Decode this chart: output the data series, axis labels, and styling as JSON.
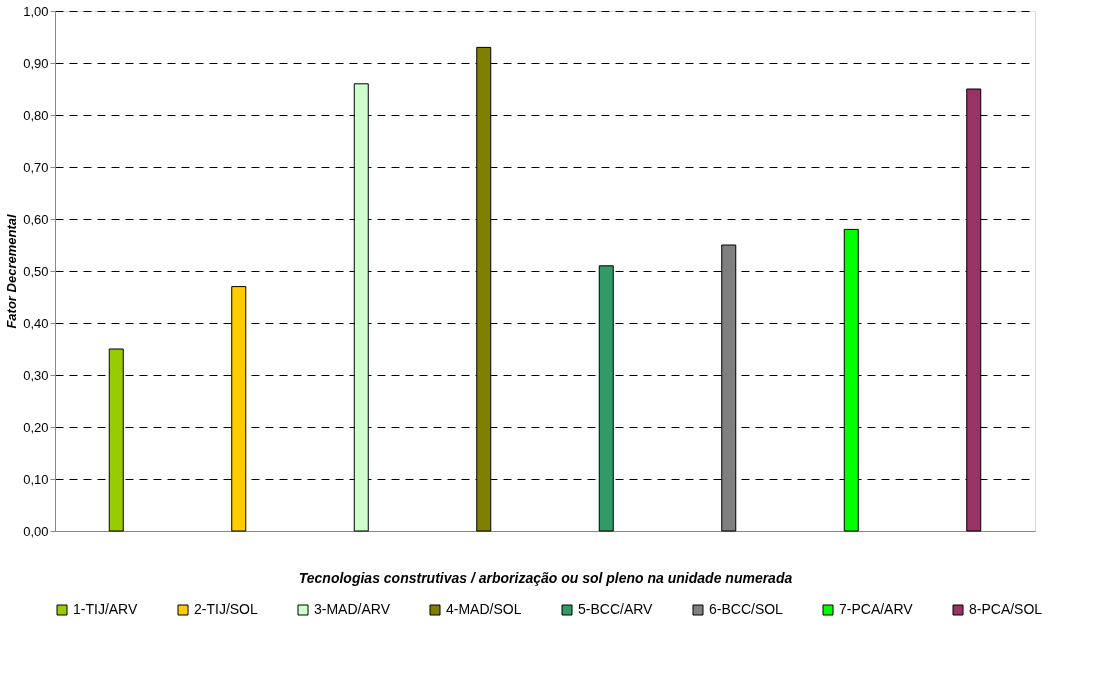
{
  "chart_data": {
    "type": "bar",
    "xlabel": "Tecnologias construtivas / arborização ou sol pleno na unidade numerada",
    "ylabel": "Fator Decremental",
    "categories": [
      null,
      null,
      null,
      null,
      null,
      null,
      null,
      null
    ],
    "series": [
      {
        "name": "1-TIJ/ARV",
        "color": "#99cc00",
        "values": [
          0.35,
          null,
          null,
          null,
          null,
          null,
          null,
          null
        ]
      },
      {
        "name": "2-TIJ/SOL",
        "color": "#ffcc00",
        "values": [
          null,
          0.47,
          null,
          null,
          null,
          null,
          null,
          null
        ]
      },
      {
        "name": "3-MAD/ARV",
        "color": "#ccffcc",
        "values": [
          null,
          null,
          0.86,
          null,
          null,
          null,
          null,
          null
        ]
      },
      {
        "name": "4-MAD/SOL",
        "color": "#808000",
        "values": [
          null,
          null,
          null,
          0.93,
          null,
          null,
          null,
          null
        ]
      },
      {
        "name": "5-BCC/ARV",
        "color": "#339966",
        "values": [
          null,
          null,
          null,
          null,
          0.51,
          null,
          null,
          null
        ]
      },
      {
        "name": "6-BCC/SOL",
        "color": "#808080",
        "values": [
          null,
          null,
          null,
          null,
          null,
          0.55,
          null,
          null
        ]
      },
      {
        "name": "7-PCA/ARV",
        "color": "#00ff00",
        "values": [
          null,
          null,
          null,
          null,
          null,
          null,
          0.58,
          null
        ]
      },
      {
        "name": "8-PCA/SOL",
        "color": "#993366",
        "values": [
          null,
          null,
          null,
          null,
          null,
          null,
          null,
          0.85
        ]
      }
    ],
    "ylim": [
      0,
      1
    ],
    "yticks": [
      {
        "value": 0,
        "label": "0,00"
      },
      {
        "value": 0.1,
        "label": "0,10"
      },
      {
        "value": 0.2,
        "label": "0,20"
      },
      {
        "value": 0.3,
        "label": "0,30"
      },
      {
        "value": 0.4,
        "label": "0,40"
      },
      {
        "value": 0.5,
        "label": "0,50"
      },
      {
        "value": 0.6,
        "label": "0,60"
      },
      {
        "value": 0.7,
        "label": "0,70"
      },
      {
        "value": 0.8,
        "label": "0,80"
      },
      {
        "value": 0.9,
        "label": "0,90"
      },
      {
        "value": 1,
        "label": "1,00"
      }
    ],
    "grid": "y",
    "line_style": "dashed",
    "legend": "bottom",
    "tick_labels": "y"
  }
}
